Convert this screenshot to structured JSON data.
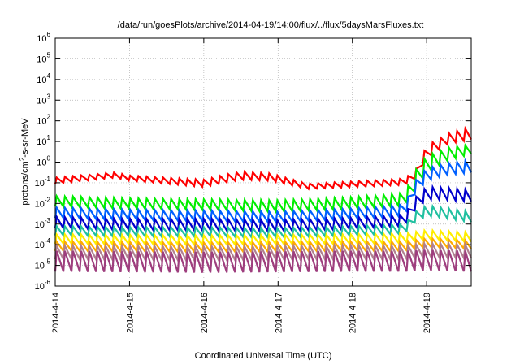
{
  "chart_data": {
    "type": "line",
    "title": "/data/run/goesPlots/archive/2014-04-19/14:00/flux/../flux/5daysMarsFluxes.txt",
    "xlabel": "Coordinated Universal Time (UTC)",
    "ylabel_parts": {
      "pre": "protons/cm",
      "sup": "2",
      "post": "-s-sr-MeV"
    },
    "yscale": "log",
    "ylim_exp": [
      -6,
      6
    ],
    "y_tick_exponents": [
      -6,
      -5,
      -4,
      -3,
      -2,
      -1,
      0,
      1,
      2,
      3,
      4,
      5,
      6
    ],
    "x_ticks": [
      "2014-4-14",
      "2014-4-15",
      "2014-4-16",
      "2014-4-17",
      "2014-4-18",
      "2014-4-19"
    ],
    "xlim_days": [
      0,
      5.6
    ],
    "grid": true,
    "sawtooth_period_days": 0.11,
    "series": [
      {
        "color": "#ff0000",
        "lo": [
          [
            0,
            -1.05
          ],
          [
            0.8,
            -0.75
          ],
          [
            1.0,
            -0.9
          ],
          [
            2.0,
            -1.2
          ],
          [
            2.5,
            -0.85
          ],
          [
            2.9,
            -0.9
          ],
          [
            3.4,
            -1.3
          ],
          [
            4.7,
            -1.1
          ],
          [
            4.85,
            -0.8
          ],
          [
            5.0,
            0.2
          ],
          [
            5.3,
            0.9
          ],
          [
            5.6,
            1.1
          ]
        ],
        "hi": [
          [
            0,
            -0.75
          ],
          [
            0.8,
            -0.5
          ],
          [
            1.0,
            -0.65
          ],
          [
            2.0,
            -0.85
          ],
          [
            2.5,
            -0.45
          ],
          [
            2.9,
            -0.55
          ],
          [
            3.4,
            -1.05
          ],
          [
            4.7,
            -0.8
          ],
          [
            4.85,
            -0.4
          ],
          [
            5.0,
            0.8
          ],
          [
            5.3,
            1.4
          ],
          [
            5.6,
            1.7
          ]
        ]
      },
      {
        "color": "#00ee00",
        "lo": [
          [
            0,
            -2.15
          ],
          [
            1.0,
            -2.25
          ],
          [
            2.0,
            -2.3
          ],
          [
            3.0,
            -2.4
          ],
          [
            4.0,
            -2.25
          ],
          [
            4.7,
            -2.1
          ],
          [
            4.85,
            -1.4
          ],
          [
            5.0,
            -0.5
          ],
          [
            5.3,
            0.1
          ],
          [
            5.6,
            0.4
          ]
        ],
        "hi": [
          [
            0,
            -1.65
          ],
          [
            1.0,
            -1.75
          ],
          [
            2.0,
            -1.8
          ],
          [
            3.0,
            -1.85
          ],
          [
            4.0,
            -1.7
          ],
          [
            4.7,
            -1.5
          ],
          [
            4.85,
            -0.4
          ],
          [
            5.0,
            0.3
          ],
          [
            5.3,
            0.7
          ],
          [
            5.6,
            0.85
          ]
        ]
      },
      {
        "color": "#0060ff",
        "lo": [
          [
            0,
            -2.7
          ],
          [
            1.0,
            -2.8
          ],
          [
            2.0,
            -2.85
          ],
          [
            3.0,
            -2.9
          ],
          [
            4.0,
            -2.75
          ],
          [
            4.7,
            -2.6
          ],
          [
            4.85,
            -1.5
          ],
          [
            5.0,
            -0.9
          ],
          [
            5.3,
            -0.6
          ],
          [
            5.6,
            -0.5
          ]
        ],
        "hi": [
          [
            0,
            -2.2
          ],
          [
            1.0,
            -2.3
          ],
          [
            2.0,
            -2.35
          ],
          [
            3.0,
            -2.4
          ],
          [
            4.0,
            -2.25
          ],
          [
            4.7,
            -2.05
          ],
          [
            4.85,
            -0.9
          ],
          [
            5.0,
            -0.3
          ],
          [
            5.3,
            -0.05
          ],
          [
            5.6,
            0.1
          ]
        ]
      },
      {
        "color": "#0000cc",
        "lo": [
          [
            0,
            -3.2
          ],
          [
            1.0,
            -3.3
          ],
          [
            2.0,
            -3.3
          ],
          [
            3.0,
            -3.35
          ],
          [
            4.0,
            -3.25
          ],
          [
            4.7,
            -3.1
          ],
          [
            4.85,
            -2.3
          ],
          [
            5.0,
            -1.8
          ],
          [
            5.3,
            -1.85
          ],
          [
            5.6,
            -1.9
          ]
        ],
        "hi": [
          [
            0,
            -2.65
          ],
          [
            1.0,
            -2.75
          ],
          [
            2.0,
            -2.75
          ],
          [
            3.0,
            -2.8
          ],
          [
            4.0,
            -2.7
          ],
          [
            4.7,
            -2.55
          ],
          [
            4.85,
            -1.7
          ],
          [
            5.0,
            -1.2
          ],
          [
            5.3,
            -1.25
          ],
          [
            5.6,
            -1.35
          ]
        ]
      },
      {
        "color": "#20c0a0",
        "lo": [
          [
            0,
            -3.55
          ],
          [
            1.0,
            -3.6
          ],
          [
            2.0,
            -3.6
          ],
          [
            3.0,
            -3.65
          ],
          [
            4.0,
            -3.55
          ],
          [
            4.7,
            -3.45
          ],
          [
            4.85,
            -2.9
          ],
          [
            5.0,
            -2.6
          ],
          [
            5.3,
            -2.75
          ],
          [
            5.6,
            -2.9
          ]
        ],
        "hi": [
          [
            0,
            -3.1
          ],
          [
            1.0,
            -3.15
          ],
          [
            2.0,
            -3.15
          ],
          [
            3.0,
            -3.2
          ],
          [
            4.0,
            -3.1
          ],
          [
            4.7,
            -3.0
          ],
          [
            4.85,
            -2.4
          ],
          [
            5.0,
            -2.1
          ],
          [
            5.3,
            -2.25
          ],
          [
            5.6,
            -2.4
          ]
        ]
      },
      {
        "color": "#ffee00",
        "lo": [
          [
            0,
            -3.95
          ],
          [
            2.0,
            -4.0
          ],
          [
            4.0,
            -3.95
          ],
          [
            4.7,
            -3.9
          ],
          [
            5.0,
            -3.75
          ],
          [
            5.6,
            -3.85
          ]
        ],
        "hi": [
          [
            0,
            -3.5
          ],
          [
            2.0,
            -3.55
          ],
          [
            4.0,
            -3.5
          ],
          [
            4.7,
            -3.45
          ],
          [
            5.0,
            -3.3
          ],
          [
            5.6,
            -3.4
          ]
        ]
      },
      {
        "color": "#ffaa00",
        "lo": [
          [
            0,
            -4.3
          ],
          [
            2.0,
            -4.35
          ],
          [
            4.0,
            -4.3
          ],
          [
            4.7,
            -4.3
          ],
          [
            5.0,
            -4.1
          ],
          [
            5.6,
            -4.2
          ]
        ],
        "hi": [
          [
            0,
            -3.85
          ],
          [
            2.0,
            -3.9
          ],
          [
            4.0,
            -3.85
          ],
          [
            4.7,
            -3.85
          ],
          [
            5.0,
            -3.7
          ],
          [
            5.6,
            -3.8
          ]
        ]
      },
      {
        "color": "#b08090",
        "lo": [
          [
            0,
            -4.7
          ],
          [
            2.0,
            -4.75
          ],
          [
            4.0,
            -4.7
          ],
          [
            4.7,
            -4.7
          ],
          [
            5.0,
            -4.6
          ],
          [
            5.6,
            -4.65
          ]
        ],
        "hi": [
          [
            0,
            -4.05
          ],
          [
            2.0,
            -4.1
          ],
          [
            4.0,
            -4.05
          ],
          [
            4.7,
            -4.05
          ],
          [
            5.0,
            -3.95
          ],
          [
            5.6,
            -4.0
          ]
        ]
      },
      {
        "color": "#9e3e7e",
        "lo": [
          [
            0,
            -5.3
          ],
          [
            2.0,
            -5.35
          ],
          [
            4.0,
            -5.3
          ],
          [
            4.7,
            -5.3
          ],
          [
            5.0,
            -5.25
          ],
          [
            5.6,
            -5.3
          ]
        ],
        "hi": [
          [
            0,
            -4.3
          ],
          [
            2.0,
            -4.35
          ],
          [
            4.0,
            -4.3
          ],
          [
            4.7,
            -4.3
          ],
          [
            5.0,
            -4.25
          ],
          [
            5.6,
            -4.3
          ]
        ]
      }
    ]
  }
}
